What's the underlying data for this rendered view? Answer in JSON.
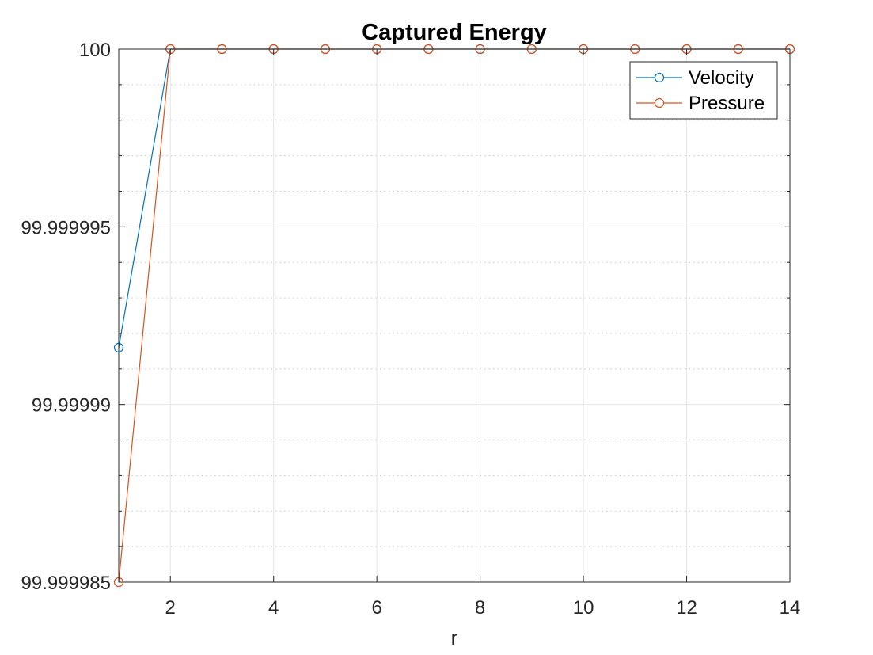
{
  "chart_data": {
    "type": "line",
    "title": "Captured Energy",
    "xlabel": "r",
    "ylabel": "",
    "xlim": [
      1,
      14
    ],
    "ylim": [
      99.999985,
      100
    ],
    "xticks": [
      2,
      4,
      6,
      8,
      10,
      12,
      14
    ],
    "xtick_labels": [
      "2",
      "4",
      "6",
      "8",
      "10",
      "12",
      "14"
    ],
    "yticks": [
      99.999985,
      99.99999,
      99.999995,
      100
    ],
    "ytick_labels": [
      "99.999985",
      "99.99999",
      "99.999995",
      "100"
    ],
    "yminor_step": 1e-06,
    "grid": true,
    "legend_position": "top-right",
    "x": [
      1,
      2,
      3,
      4,
      5,
      6,
      7,
      8,
      9,
      10,
      11,
      12,
      13,
      14
    ],
    "series": [
      {
        "name": "Velocity",
        "color": "#0072BD",
        "marker": "circle",
        "values": [
          99.9999916,
          100,
          100,
          100,
          100,
          100,
          100,
          100,
          100,
          100,
          100,
          100,
          100,
          100
        ]
      },
      {
        "name": "Pressure",
        "color": "#D95319",
        "marker": "circle",
        "values": [
          99.999985,
          100,
          100,
          100,
          100,
          100,
          100,
          100,
          100,
          100,
          100,
          100,
          100,
          100
        ]
      }
    ]
  }
}
